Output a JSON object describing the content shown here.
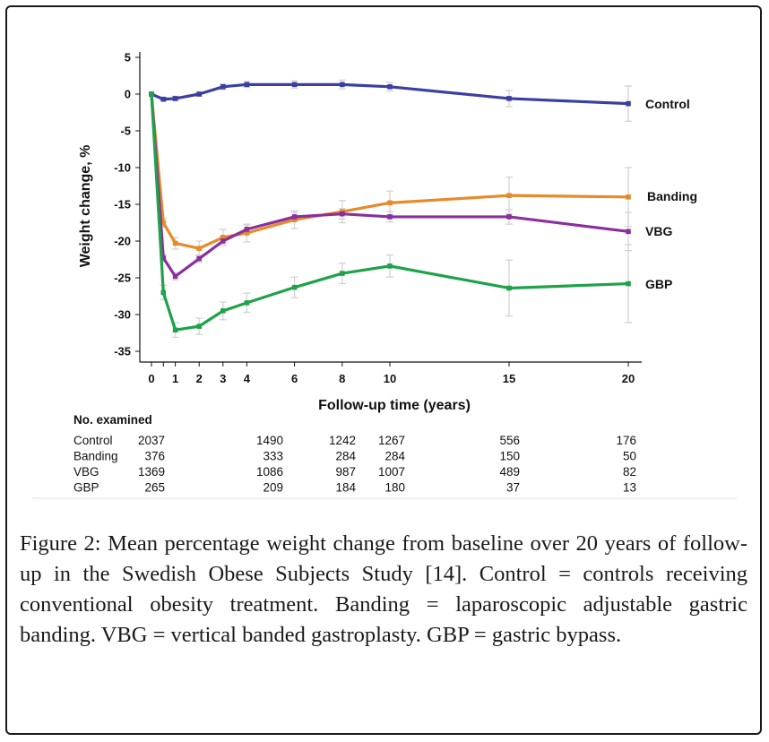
{
  "chart_data": {
    "type": "line",
    "ylabel": "Weight change, %",
    "xlabel": "Follow-up time (years)",
    "ylim": [
      -36,
      5
    ],
    "xlim": [
      -0.6,
      20.4
    ],
    "yticks": [
      5,
      0,
      -5,
      -10,
      -15,
      -20,
      -25,
      -30,
      -35
    ],
    "xticks": [
      0,
      1,
      2,
      3,
      4,
      6,
      8,
      10,
      15,
      20
    ],
    "extra_xticks": [
      0.5
    ],
    "colors": {
      "Control": "#3c3fa0",
      "Banding": "#e8892a",
      "VBG": "#8a2f9e",
      "GBP": "#1fa24a",
      "errorbar": "#d3d3d3"
    },
    "series": [
      {
        "name": "Control",
        "x": [
          0,
          0.5,
          1,
          2,
          3,
          4,
          6,
          8,
          10,
          15,
          20
        ],
        "y": [
          0,
          -0.7,
          -0.6,
          0,
          1.0,
          1.3,
          1.3,
          1.3,
          1.0,
          -0.6,
          -1.3
        ],
        "err": [
          0,
          0.2,
          0.3,
          0.3,
          0.4,
          0.4,
          0.5,
          0.6,
          0.6,
          1.1,
          2.4
        ]
      },
      {
        "name": "Banding",
        "x": [
          0,
          0.5,
          1,
          2,
          3,
          4,
          6,
          8,
          10,
          15,
          20
        ],
        "y": [
          0,
          -17.5,
          -20.3,
          -21.0,
          -19.5,
          -18.9,
          -17.1,
          -16.0,
          -14.8,
          -13.8,
          -14.0
        ],
        "err": [
          0,
          0.6,
          0.8,
          1.0,
          1.1,
          1.2,
          1.2,
          1.5,
          1.6,
          2.5,
          4.0
        ]
      },
      {
        "name": "VBG",
        "x": [
          0,
          0.5,
          1,
          2,
          3,
          4,
          6,
          8,
          10,
          15,
          20
        ],
        "y": [
          0,
          -22.3,
          -24.8,
          -22.4,
          -20.0,
          -18.4,
          -16.7,
          -16.3,
          -16.7,
          -16.7,
          -18.7
        ],
        "err": [
          0,
          0.5,
          0.5,
          0.5,
          0.6,
          0.6,
          0.6,
          0.7,
          0.7,
          1.0,
          2.6
        ]
      },
      {
        "name": "GBP",
        "x": [
          0,
          0.5,
          1,
          2,
          3,
          4,
          6,
          8,
          10,
          15,
          20
        ],
        "y": [
          0,
          -27.0,
          -32.1,
          -31.6,
          -29.5,
          -28.4,
          -26.3,
          -24.4,
          -23.4,
          -26.4,
          -25.8
        ],
        "err": [
          0,
          1.0,
          1.0,
          1.1,
          1.2,
          1.3,
          1.4,
          1.4,
          1.5,
          3.8,
          5.3
        ]
      }
    ],
    "table": {
      "title": "No. examined",
      "rows": [
        {
          "label": "Control",
          "values": [
            "2037",
            "1490",
            "1242",
            "1267",
            "556",
            "176"
          ]
        },
        {
          "label": "Banding",
          "values": [
            "376",
            "333",
            "284",
            "284",
            "150",
            "50"
          ]
        },
        {
          "label": "VBG",
          "values": [
            "1369",
            "1086",
            "987",
            "1007",
            "489",
            "82"
          ]
        },
        {
          "label": "GBP",
          "values": [
            "265",
            "209",
            "184",
            "180",
            "37",
            "13"
          ]
        }
      ],
      "years": [
        0,
        4,
        8,
        10,
        15,
        20
      ]
    }
  },
  "caption": {
    "lead": "Figure 2:",
    "text": " Mean percentage weight change from baseline over 20 years of follow-up in the Swedish Obese Subjects Study [14]. Control = controls receiving conventional obesity treatment. Banding = laparoscopic adjustable gastric banding. VBG = vertical banded gastroplasty. GBP = gastric bypass."
  }
}
